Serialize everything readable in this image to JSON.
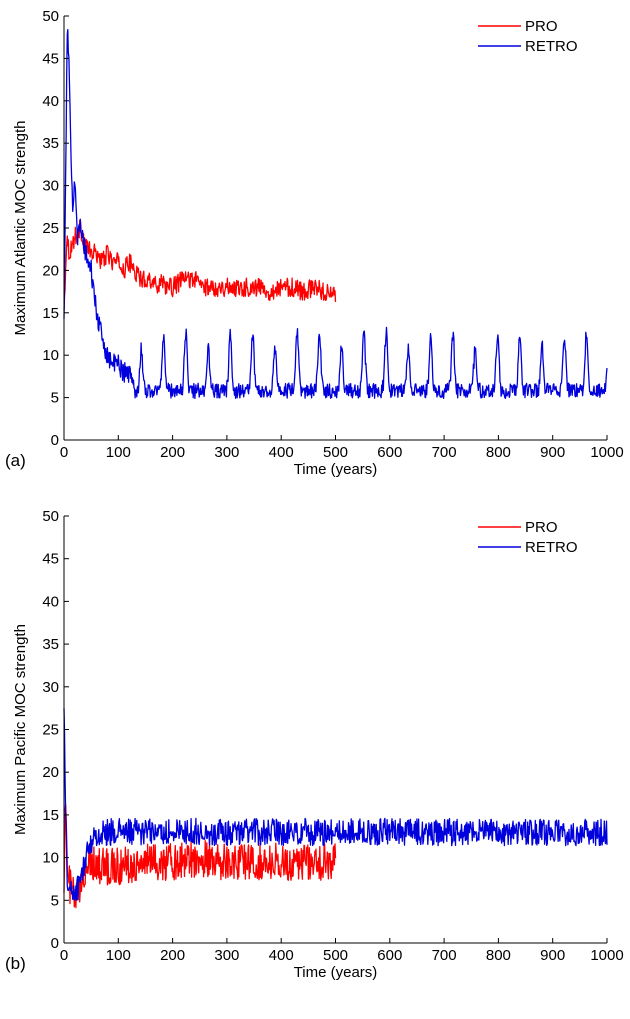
{
  "colors": {
    "pro": "#ff0000",
    "retro": "#0000dd",
    "axis": "#000000"
  },
  "chart_data": [
    {
      "type": "line",
      "panel_label": "(a)",
      "xlabel": "Time (years)",
      "ylabel": "Maximum Atlantic MOC strength",
      "xlim": [
        0,
        1000
      ],
      "ylim": [
        0,
        50
      ],
      "xticks": [
        0,
        100,
        200,
        300,
        400,
        500,
        600,
        700,
        800,
        900,
        1000
      ],
      "yticks": [
        0,
        5,
        10,
        15,
        20,
        25,
        30,
        35,
        40,
        45,
        50
      ],
      "legend_position": "top-right",
      "series": [
        {
          "name": "PRO",
          "color": "#ff0000",
          "x": [
            0,
            5,
            10,
            15,
            20,
            30,
            40,
            50,
            60,
            70,
            80,
            90,
            100,
            110,
            120,
            130,
            140,
            150,
            160,
            170,
            180,
            190,
            200,
            220,
            240,
            260,
            280,
            300,
            320,
            340,
            360,
            380,
            400,
            420,
            440,
            460,
            480,
            500
          ],
          "y": [
            15,
            24,
            22,
            23,
            24,
            25,
            23,
            22,
            22,
            21,
            22,
            21,
            21,
            20,
            21,
            20,
            19,
            19,
            19,
            18,
            19,
            18,
            18,
            19,
            19,
            18,
            18,
            18,
            18,
            18,
            18,
            17.5,
            18,
            18,
            17.5,
            18,
            17.5,
            17
          ],
          "noise": 1.1
        },
        {
          "name": "RETRO",
          "color": "#0000dd",
          "x": [
            0,
            3,
            6,
            9,
            12,
            16,
            20,
            25,
            30,
            40,
            50,
            60,
            70,
            80,
            90,
            100,
            110,
            120,
            130
          ],
          "y": [
            14,
            30,
            49,
            44,
            36,
            28,
            31,
            24,
            25,
            22,
            20,
            15,
            12,
            10,
            9,
            9,
            8,
            8,
            6
          ],
          "noise": 1.2,
          "oscillation": {
            "start": 130,
            "end": 1000,
            "period": 41,
            "base": 5.8,
            "peak": 12.5,
            "noise": 0.9
          }
        }
      ]
    },
    {
      "type": "line",
      "panel_label": "(b)",
      "xlabel": "Time (years)",
      "ylabel": "Maximum Pacific MOC strength",
      "xlim": [
        0,
        1000
      ],
      "ylim": [
        0,
        50
      ],
      "xticks": [
        0,
        100,
        200,
        300,
        400,
        500,
        600,
        700,
        800,
        900,
        1000
      ],
      "yticks": [
        0,
        5,
        10,
        15,
        20,
        25,
        30,
        35,
        40,
        45,
        50
      ],
      "legend_position": "top-right",
      "series": [
        {
          "name": "PRO",
          "color": "#ff0000",
          "x": [
            0,
            3,
            6,
            10,
            20,
            30,
            40,
            50,
            60,
            80,
            100,
            150,
            200,
            250,
            300,
            350,
            400,
            450,
            500
          ],
          "y": [
            8,
            17,
            8,
            7,
            5,
            6,
            9,
            10,
            9,
            9,
            9,
            9.5,
            9.5,
            10,
            9.5,
            9.5,
            9.5,
            9.5,
            9.5
          ],
          "noise": 2.2
        },
        {
          "name": "RETRO",
          "color": "#0000dd",
          "x": [
            0,
            3,
            6,
            10,
            20,
            30,
            40,
            50,
            60,
            80,
            100,
            150,
            200,
            300,
            400,
            500,
            600,
            700,
            800,
            900,
            1000
          ],
          "y": [
            29,
            14,
            8,
            6,
            6,
            7,
            10,
            12,
            12.5,
            13,
            13,
            13,
            13,
            13,
            13,
            13,
            13,
            13,
            13,
            13,
            13
          ],
          "noise": 1.6
        }
      ]
    }
  ]
}
